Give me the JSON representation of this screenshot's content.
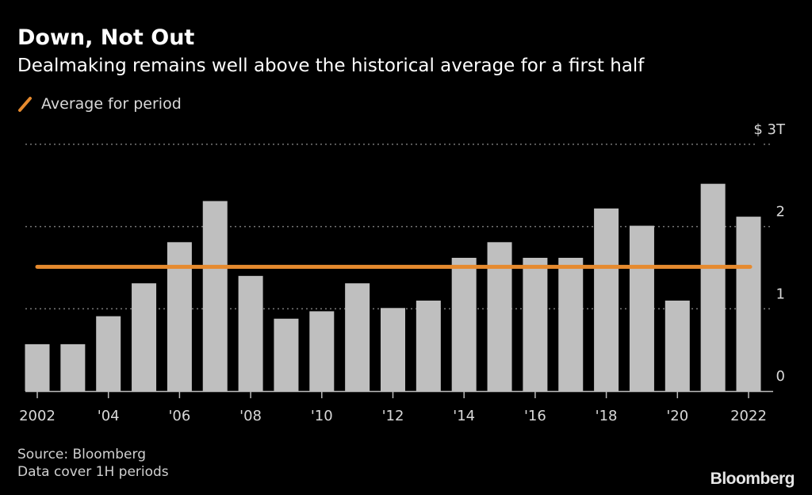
{
  "header": {
    "title": "Down, Not Out",
    "subtitle": "Dealmaking remains well above the historical average for a first half"
  },
  "legend": {
    "label": "Average for period",
    "color": "#e68a2e"
  },
  "footer": {
    "source": "Source: Bloomberg",
    "note": "Data cover 1H periods",
    "brand": "Bloomberg"
  },
  "chart_data": {
    "type": "bar",
    "title": "Down, Not Out",
    "subtitle": "Dealmaking remains well above the historical average for a first half",
    "xlabel": "",
    "ylabel": "",
    "categories": [
      "2002",
      "2003",
      "2004",
      "2005",
      "2006",
      "2007",
      "2008",
      "2009",
      "2010",
      "2011",
      "2012",
      "2013",
      "2014",
      "2015",
      "2016",
      "2017",
      "2018",
      "2019",
      "2020",
      "2021",
      "2022"
    ],
    "values": [
      0.57,
      0.57,
      0.91,
      1.31,
      1.81,
      2.31,
      1.4,
      0.88,
      0.97,
      1.31,
      1.01,
      1.1,
      1.62,
      1.81,
      1.62,
      1.62,
      2.22,
      2.01,
      1.1,
      2.52,
      2.12
    ],
    "unit": "$ trillions",
    "ylim": [
      0,
      3
    ],
    "yticks": [
      0,
      1,
      2,
      3
    ],
    "ytick_labels": [
      "0",
      "1",
      "2",
      "$ 3T"
    ],
    "xtick_labels": [
      {
        "index": 0,
        "label": "2002"
      },
      {
        "index": 2,
        "label": "'04"
      },
      {
        "index": 4,
        "label": "'06"
      },
      {
        "index": 6,
        "label": "'08"
      },
      {
        "index": 8,
        "label": "'10"
      },
      {
        "index": 10,
        "label": "'12"
      },
      {
        "index": 12,
        "label": "'14"
      },
      {
        "index": 14,
        "label": "'16"
      },
      {
        "index": 16,
        "label": "'18"
      },
      {
        "index": 18,
        "label": "'20"
      },
      {
        "index": 20,
        "label": "2022"
      }
    ],
    "reference_line": {
      "name": "Average for period",
      "value": 1.51,
      "color": "#e68a2e"
    },
    "bar_color": "#bfbfbf",
    "grid": true,
    "yaxis_position": "right",
    "legend_position": "top-left"
  }
}
